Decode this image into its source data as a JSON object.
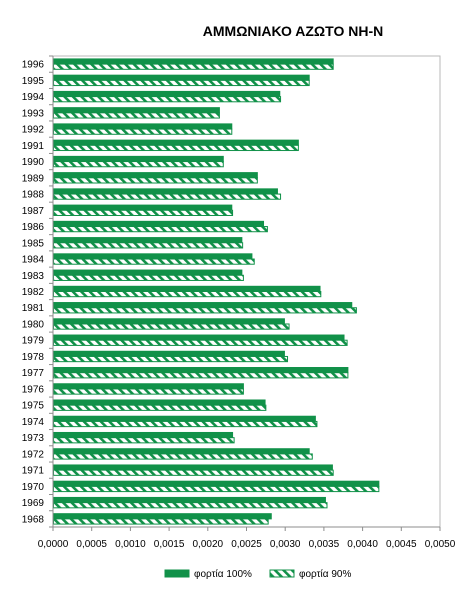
{
  "chart_data": {
    "type": "bar",
    "orientation": "horizontal",
    "title": "ΑΜΜΩΝΙΑΚΟ ΑΖΩΤΟ ΝΗ-Ν",
    "xlabel": "",
    "ylabel": "",
    "xlim": [
      0,
      0.005
    ],
    "x_ticks": [
      "0,0000",
      "0,0005",
      "0,0010",
      "0,0015",
      "0,0020",
      "0,0025",
      "0,0030",
      "0,0035",
      "0,0040",
      "0,0045",
      "0,0050"
    ],
    "categories": [
      "1996",
      "1995",
      "1994",
      "1993",
      "1992",
      "1991",
      "1990",
      "1989",
      "1988",
      "1987",
      "1986",
      "1985",
      "1984",
      "1983",
      "1982",
      "1981",
      "1980",
      "1979",
      "1978",
      "1977",
      "1976",
      "1975",
      "1974",
      "1973",
      "1972",
      "1971",
      "1970",
      "1969",
      "1968"
    ],
    "series": [
      {
        "name": "φορτία 100%",
        "color": "#119149",
        "pattern": "solid",
        "values": [
          0.00362,
          0.00331,
          0.00293,
          0.00215,
          0.00231,
          0.00317,
          0.0022,
          0.00264,
          0.0029,
          0.00231,
          0.00272,
          0.00244,
          0.00257,
          0.00244,
          0.00345,
          0.00386,
          0.00299,
          0.00376,
          0.00299,
          0.00381,
          0.00246,
          0.00274,
          0.00339,
          0.00232,
          0.00331,
          0.00361,
          0.00421,
          0.00352,
          0.00282
        ]
      },
      {
        "name": "φορτία 90%",
        "color": "#119149",
        "pattern": "hatched",
        "values": [
          0.00362,
          0.00331,
          0.00294,
          0.00215,
          0.00231,
          0.00317,
          0.0022,
          0.00264,
          0.00294,
          0.00232,
          0.00277,
          0.00245,
          0.0026,
          0.00246,
          0.00346,
          0.00392,
          0.00305,
          0.0038,
          0.00303,
          0.00381,
          0.00246,
          0.00275,
          0.00341,
          0.00234,
          0.00335,
          0.00362,
          0.00421,
          0.00354,
          0.00278
        ]
      }
    ],
    "grid": false,
    "legend_position": "bottom"
  }
}
